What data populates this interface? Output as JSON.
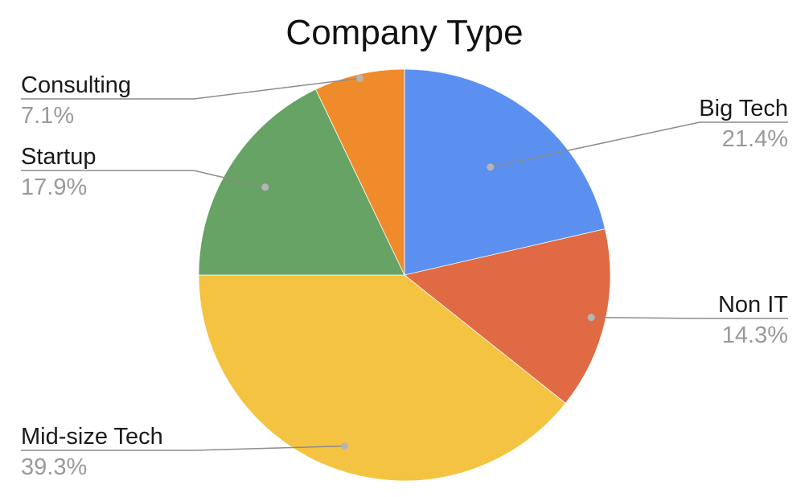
{
  "chart_data": {
    "type": "pie",
    "title": "Company Type",
    "slices": [
      {
        "label": "Big Tech",
        "value": 21.4,
        "value_label": "21.4%",
        "color": "#5b8ff0"
      },
      {
        "label": "Non IT",
        "value": 14.3,
        "value_label": "14.3%",
        "color": "#e06a43"
      },
      {
        "label": "Mid-size Tech",
        "value": 39.3,
        "value_label": "39.3%",
        "color": "#f4c342"
      },
      {
        "label": "Startup",
        "value": 17.9,
        "value_label": "17.9%",
        "color": "#66a364"
      },
      {
        "label": "Consulting",
        "value": 7.1,
        "value_label": "7.1%",
        "color": "#f08b2c"
      }
    ],
    "start_angle": "12 o'clock",
    "direction": "clockwise",
    "legend": "none (callout labels beside slices)"
  }
}
